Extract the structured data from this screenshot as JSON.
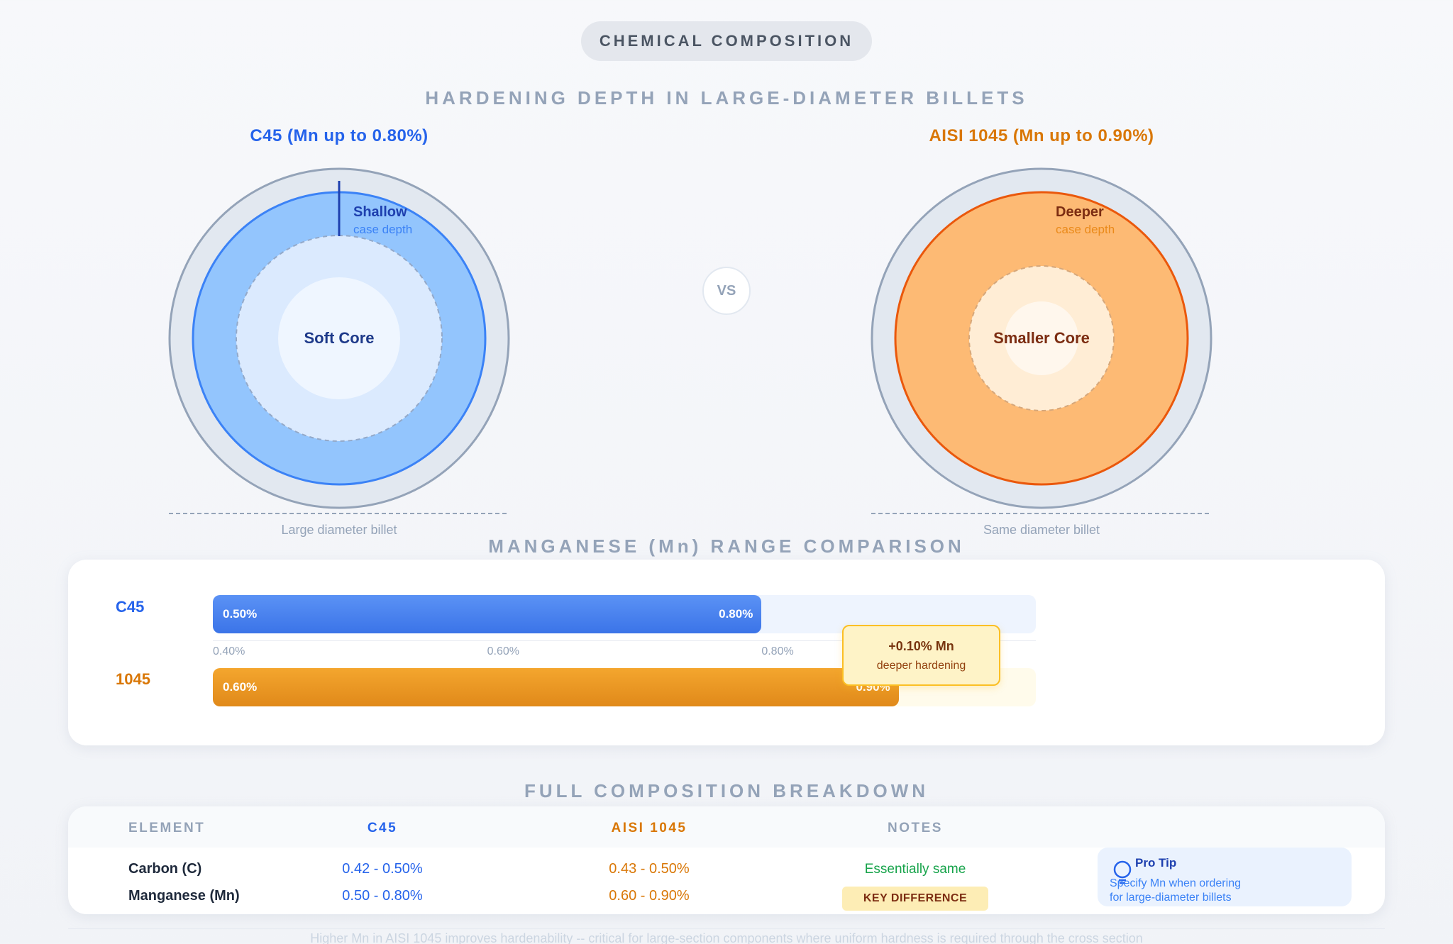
{
  "header": {
    "pill_label": "CHEMICAL COMPOSITION"
  },
  "hardening": {
    "title": "HARDENING DEPTH IN LARGE-DIAMETER BILLETS",
    "left": {
      "title": "C45 (Mn up to 0.80%)",
      "case_label": "Shallow",
      "case_sublabel": "case depth",
      "core_label": "Soft Core",
      "caption": "Large diameter billet"
    },
    "vs_label": "VS",
    "right": {
      "title": "AISI 1045 (Mn up to 0.90%)",
      "case_label": "Deeper",
      "case_sublabel": "case depth",
      "core_label": "Smaller Core",
      "caption": "Same diameter billet"
    }
  },
  "mn_range": {
    "title": "MANGANESE (Mn) RANGE COMPARISON",
    "axis_min": 0.4,
    "axis_max": 1.0,
    "ticks": [
      "0.40%",
      "0.60%",
      "0.80%"
    ],
    "bars": [
      {
        "label": "C45",
        "min": 0.5,
        "max": 0.8,
        "min_label": "0.50%",
        "max_label": "0.80%"
      },
      {
        "label": "1045",
        "min": 0.6,
        "max": 0.9,
        "min_label": "0.60%",
        "max_label": "0.90%"
      }
    ],
    "callout": {
      "headline": "+0.10% Mn",
      "subtext": "deeper hardening"
    }
  },
  "breakdown": {
    "title": "FULL COMPOSITION BREAKDOWN",
    "headers": {
      "element": "ELEMENT",
      "c45": "C45",
      "aisi": "AISI 1045",
      "notes": "NOTES"
    },
    "rows": [
      {
        "element": "Carbon (C)",
        "c45": "0.42 - 0.50%",
        "aisi": "0.43 - 0.50%",
        "note": "Essentially same"
      },
      {
        "element": "Manganese (Mn)",
        "c45": "0.50 - 0.80%",
        "aisi": "0.60 - 0.90%",
        "note": "KEY DIFFERENCE"
      }
    ],
    "tip": {
      "title": "Pro Tip",
      "line1": "Specify Mn when ordering",
      "line2": "for large-diameter billets"
    }
  },
  "footnote": "Higher Mn in AISI 1045 improves hardenability -- critical for large-section components where uniform hardness is required through the cross section",
  "colors": {
    "c45": "#2563eb",
    "aisi": "#d97706",
    "c45_case": "#93c5fd",
    "aisi_case": "#fdba74",
    "note_green": "#16a34a"
  }
}
